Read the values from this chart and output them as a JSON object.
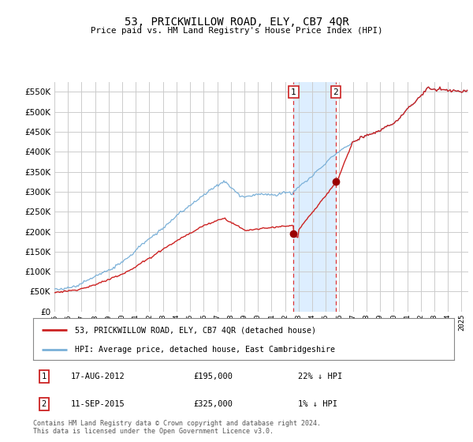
{
  "title": "53, PRICKWILLOW ROAD, ELY, CB7 4QR",
  "subtitle": "Price paid vs. HM Land Registry's House Price Index (HPI)",
  "red_label": "53, PRICKWILLOW ROAD, ELY, CB7 4QR (detached house)",
  "blue_label": "HPI: Average price, detached house, East Cambridgeshire",
  "transaction1": {
    "label": "1",
    "date": "17-AUG-2012",
    "price": "£195,000",
    "hpi": "22% ↓ HPI"
  },
  "transaction2": {
    "label": "2",
    "date": "11-SEP-2015",
    "price": "£325,000",
    "hpi": "1% ↓ HPI"
  },
  "footnote": "Contains HM Land Registry data © Crown copyright and database right 2024.\nThis data is licensed under the Open Government Licence v3.0.",
  "ylim": [
    0,
    575000
  ],
  "xlim_start": 1995.0,
  "xlim_end": 2025.5,
  "highlight1_start": 2012.63,
  "highlight1_end": 2015.72,
  "marker1_x": 2012.63,
  "marker1_y": 195000,
  "marker2_x": 2015.72,
  "marker2_y": 325000,
  "background_color": "#ffffff",
  "plot_bg_color": "#ffffff",
  "grid_color": "#cccccc",
  "highlight_color": "#ddeeff"
}
